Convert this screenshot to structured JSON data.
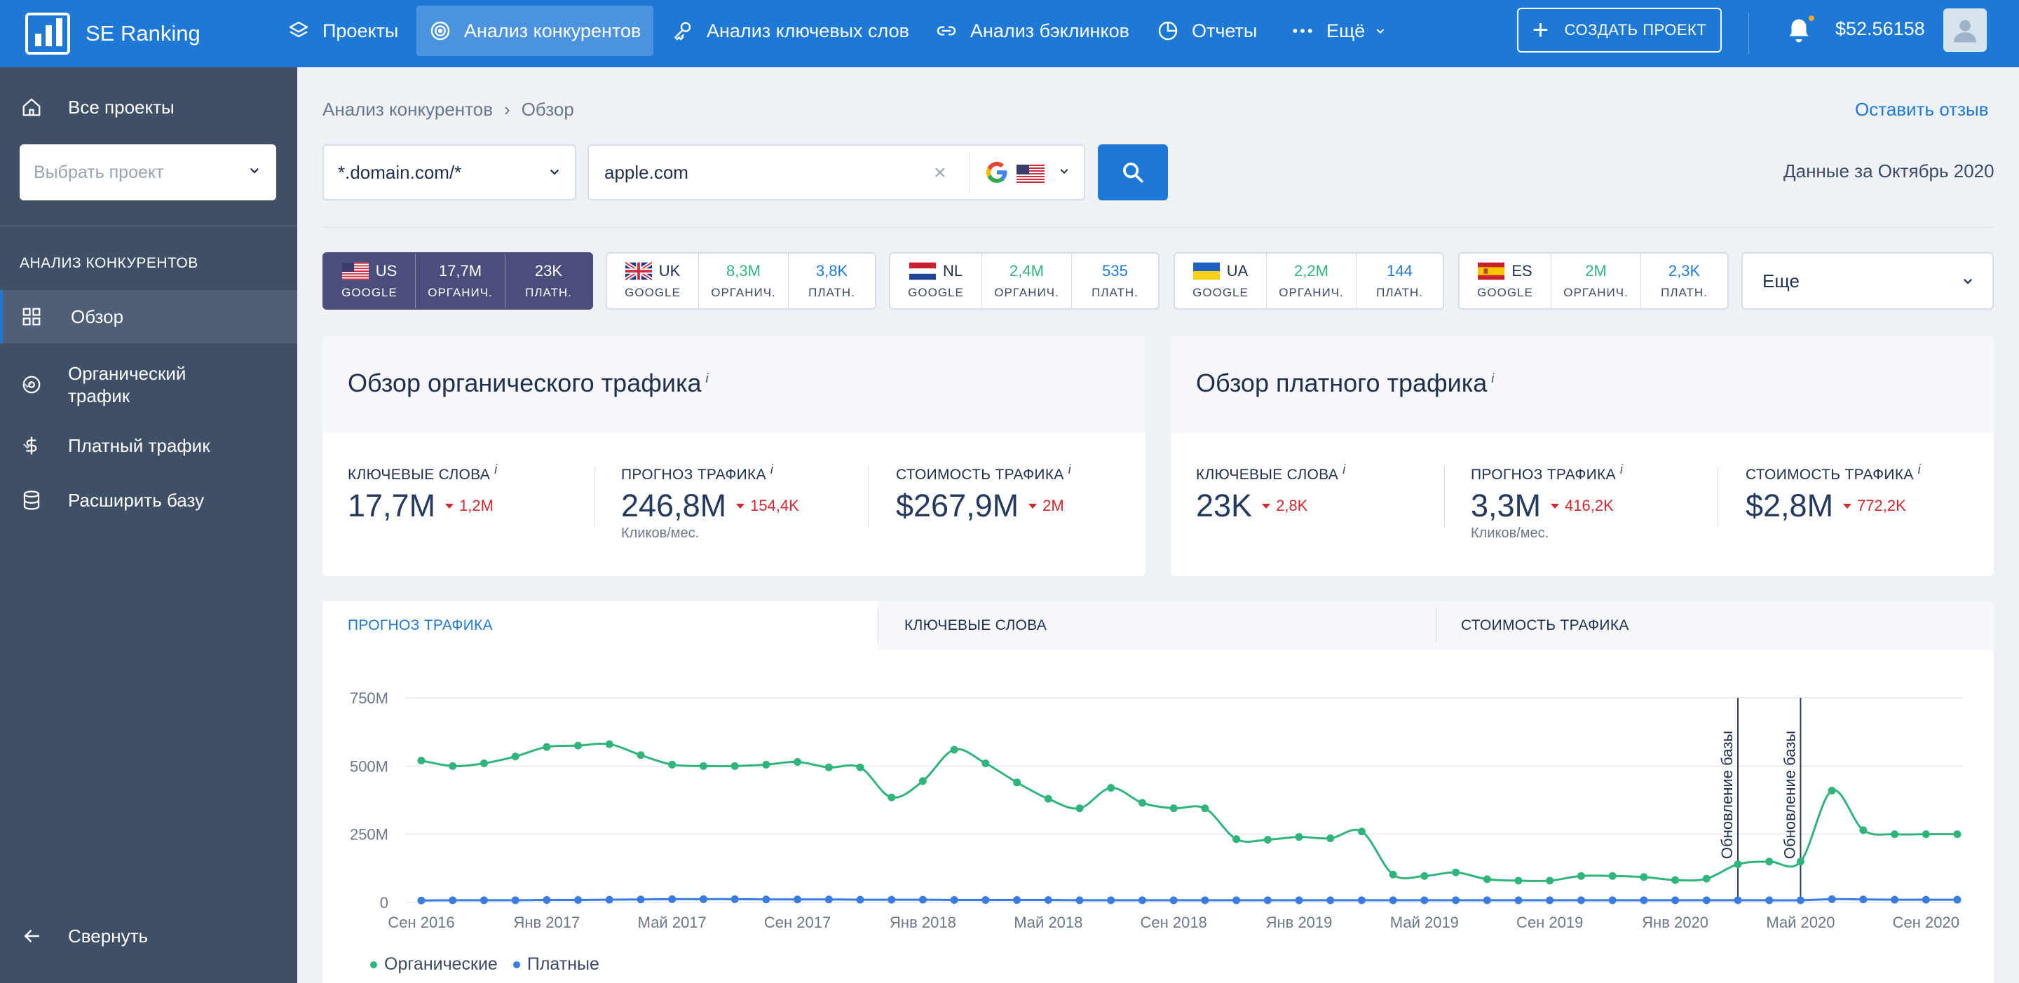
{
  "app": {
    "name": "SE Ranking"
  },
  "nav": [
    {
      "label": "Проекты",
      "icon": "layers-icon"
    },
    {
      "label": "Анализ конкурентов",
      "icon": "target-icon"
    },
    {
      "label": "Анализ ключевых слов",
      "icon": "key-icon"
    },
    {
      "label": "Анализ бэклинков",
      "icon": "link-icon"
    },
    {
      "label": "Отчеты",
      "icon": "pie-chart-icon"
    },
    {
      "label": "Ещё",
      "icon": "more-dots-icon"
    }
  ],
  "header": {
    "create_label": "СОЗДАТЬ ПРОЕКТ",
    "balance": "$52.56158"
  },
  "sidebar": {
    "all_projects": "Все проекты",
    "project_placeholder": "Выбрать проект",
    "section_title": "АНАЛИЗ КОНКУРЕНТОВ",
    "items": [
      {
        "label": "Обзор",
        "icon": "grid-icon"
      },
      {
        "label": "Органический трафик",
        "icon": "target-icon"
      },
      {
        "label": "Платный трафик",
        "icon": "dollar-icon"
      },
      {
        "label": "Расширить базу",
        "icon": "database-icon"
      }
    ],
    "collapse": "Свернуть"
  },
  "breadcrumb": {
    "parent": "Анализ конкурентов",
    "sep": "›",
    "current": "Обзор"
  },
  "feedback": "Оставить отзыв",
  "search": {
    "mode": "*.domain.com/*",
    "value": "apple.com",
    "clear": "×"
  },
  "data_date": "Данные за Октябрь 2020",
  "countries": [
    {
      "code": "US",
      "engine": "GOOGLE",
      "organic": "17,7M",
      "organic_label": "ОРГАНИЧ.",
      "paid": "23K",
      "paid_label": "ПЛАТН."
    },
    {
      "code": "UK",
      "engine": "GOOGLE",
      "organic": "8,3M",
      "organic_label": "ОРГАНИЧ.",
      "paid": "3,8K",
      "paid_label": "ПЛАТН."
    },
    {
      "code": "NL",
      "engine": "GOOGLE",
      "organic": "2,4M",
      "organic_label": "ОРГАНИЧ.",
      "paid": "535",
      "paid_label": "ПЛАТН."
    },
    {
      "code": "UA",
      "engine": "GOOGLE",
      "organic": "2,2M",
      "organic_label": "ОРГАНИЧ.",
      "paid": "144",
      "paid_label": "ПЛАТН."
    },
    {
      "code": "ES",
      "engine": "GOOGLE",
      "organic": "2M",
      "organic_label": "ОРГАНИЧ.",
      "paid": "2,3K",
      "paid_label": "ПЛАТН."
    }
  ],
  "more_countries": "Еще",
  "organic_card": {
    "title": "Обзор органического трафика",
    "info": "i",
    "keywords": {
      "label": "КЛЮЧЕВЫЕ СЛОВА",
      "value": "17,7M",
      "delta": "1,2M"
    },
    "traffic": {
      "label": "ПРОГНОЗ ТРАФИКА",
      "value": "246,8M",
      "delta": "154,4K",
      "sub": "Кликов/мес."
    },
    "cost": {
      "label": "СТОИМОСТЬ ТРАФИКА",
      "value": "$267,9M",
      "delta": "2M"
    }
  },
  "paid_card": {
    "title": "Обзор платного трафика",
    "info": "i",
    "keywords": {
      "label": "КЛЮЧЕВЫЕ СЛОВА",
      "value": "23K",
      "delta": "2,8K"
    },
    "traffic": {
      "label": "ПРОГНОЗ ТРАФИКА",
      "value": "3,3M",
      "delta": "416,2K",
      "sub": "Кликов/мес."
    },
    "cost": {
      "label": "СТОИМОСТЬ ТРАФИКА",
      "value": "$2,8M",
      "delta": "772,2K"
    }
  },
  "chart_tabs": [
    "ПРОГНОЗ ТРАФИКА",
    "КЛЮЧЕВЫЕ СЛОВА",
    "СТОИМОСТЬ ТРАФИКА"
  ],
  "chart_data": {
    "type": "line",
    "ylim": [
      0,
      750
    ],
    "yticks": [
      "750M",
      "500M",
      "250M",
      "0"
    ],
    "xticks": [
      "Сен 2016",
      "Янв 2017",
      "Май 2017",
      "Сен 2017",
      "Янв 2018",
      "Май 2018",
      "Сен 2018",
      "Янв 2019",
      "Май 2019",
      "Сен 2019",
      "Янв 2020",
      "Май 2020",
      "Сен 2020"
    ],
    "x": [
      "2016-09",
      "2016-10",
      "2016-11",
      "2016-12",
      "2017-01",
      "2017-02",
      "2017-03",
      "2017-04",
      "2017-05",
      "2017-06",
      "2017-07",
      "2017-08",
      "2017-09",
      "2017-10",
      "2017-11",
      "2017-12",
      "2018-01",
      "2018-02",
      "2018-03",
      "2018-04",
      "2018-05",
      "2018-06",
      "2018-07",
      "2018-08",
      "2018-09",
      "2018-10",
      "2018-11",
      "2018-12",
      "2019-01",
      "2019-02",
      "2019-03",
      "2019-04",
      "2019-05",
      "2019-06",
      "2019-07",
      "2019-08",
      "2019-09",
      "2019-10",
      "2019-11",
      "2019-12",
      "2020-01",
      "2020-02",
      "2020-03",
      "2020-04",
      "2020-05",
      "2020-06",
      "2020-07",
      "2020-08",
      "2020-09",
      "2020-10"
    ],
    "series": [
      {
        "name": "Органические",
        "color": "#2fb57b",
        "values": [
          520,
          500,
          510,
          535,
          570,
          575,
          580,
          540,
          505,
          500,
          500,
          505,
          515,
          495,
          495,
          385,
          445,
          560,
          510,
          440,
          380,
          345,
          420,
          365,
          345,
          345,
          232,
          230,
          240,
          235,
          260,
          102,
          97,
          110,
          85,
          80,
          80,
          97,
          97,
          93,
          82,
          87,
          140,
          150,
          150,
          410,
          265,
          250,
          250,
          250
        ]
      },
      {
        "name": "Платные",
        "color": "#3a7be0",
        "values": [
          7,
          8,
          8,
          8,
          9,
          9,
          10,
          11,
          12,
          12,
          12,
          11,
          11,
          11,
          10,
          10,
          10,
          9,
          9,
          9,
          9,
          8,
          8,
          8,
          8,
          8,
          8,
          8,
          8,
          8,
          8,
          8,
          8,
          8,
          8,
          8,
          8,
          8,
          8,
          8,
          8,
          8,
          8,
          8,
          8,
          12,
          11,
          10,
          10,
          10
        ]
      }
    ],
    "annotations": [
      {
        "x": "2020-03",
        "label": "Обновление базы"
      },
      {
        "x": "2020-05",
        "label": "Обновление базы"
      }
    ],
    "grid": true,
    "legend": "bottom-left"
  }
}
